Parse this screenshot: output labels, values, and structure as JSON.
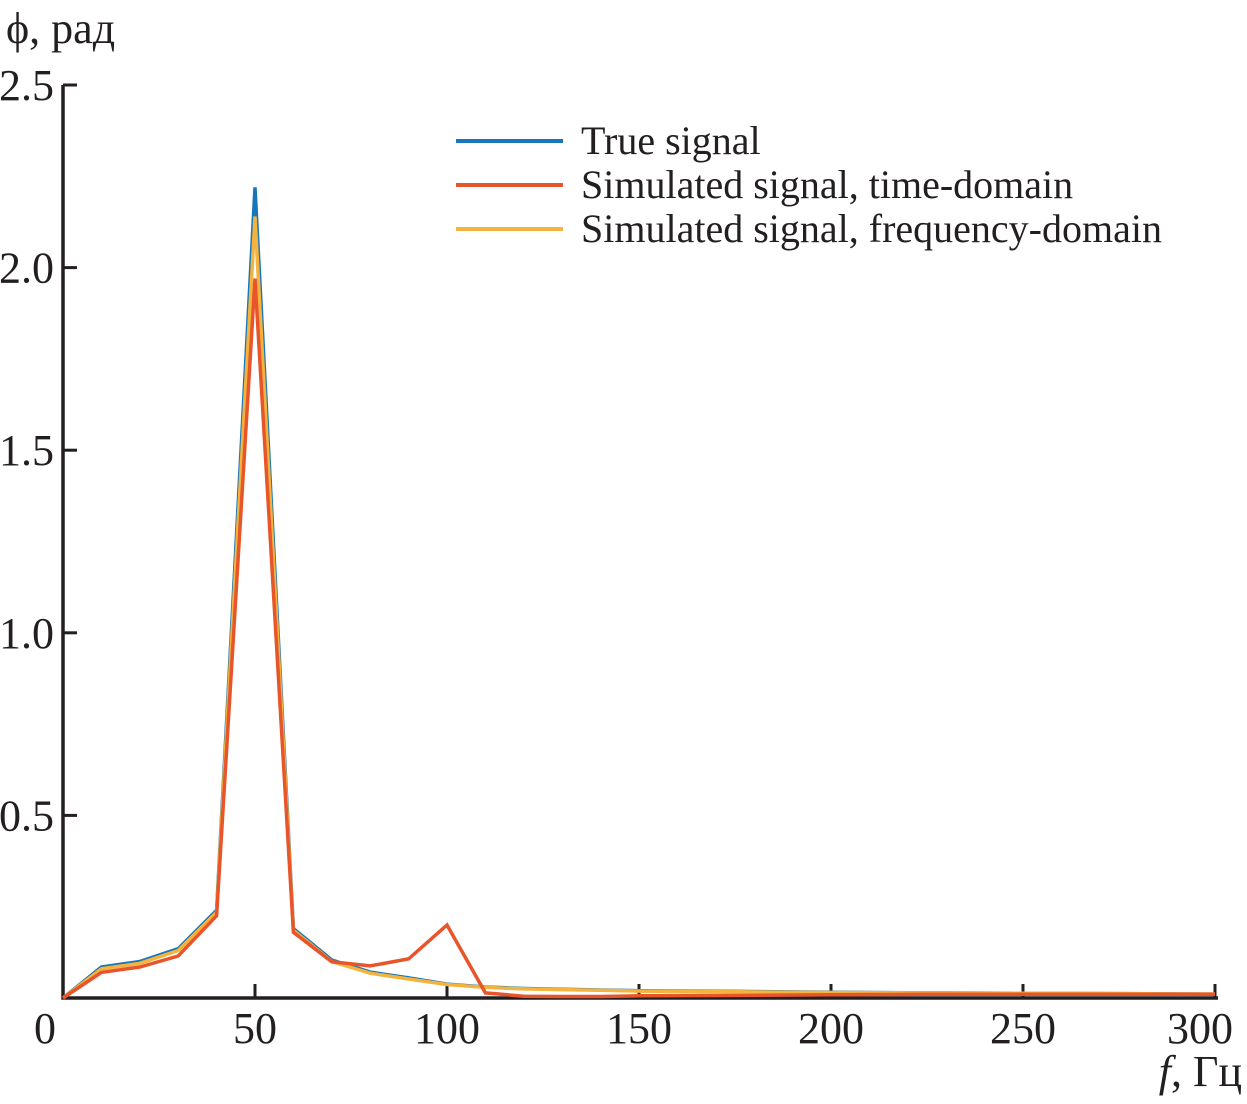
{
  "figure": {
    "background": "#ffffff",
    "text_color": "#231f20",
    "axis_color": "#231f20"
  },
  "chart_data": {
    "type": "line",
    "title": "",
    "ylabel": "ϕ, рад",
    "xlabel_variable": "f",
    "xlabel_unit": ", Гц",
    "xlim": [
      0,
      300
    ],
    "ylim": [
      0,
      2.5
    ],
    "xticks": [
      0,
      50,
      100,
      150,
      200,
      250,
      300
    ],
    "xtick_labels": [
      "0",
      "50",
      "100",
      "150",
      "200",
      "250",
      "300"
    ],
    "yticks": [
      0.5,
      1.0,
      1.5,
      2.0,
      2.5
    ],
    "ytick_labels": [
      "0.5",
      "1.0",
      "1.5",
      "2.0",
      "2.5"
    ],
    "grid": false,
    "legend_position": "upper-center, frameless",
    "x": [
      0,
      10,
      20,
      30,
      40,
      50,
      60,
      70,
      80,
      90,
      100,
      110,
      120,
      130,
      140,
      150,
      175,
      200,
      225,
      250,
      275,
      300
    ],
    "series": [
      {
        "name": "True signal",
        "color": "#1777b8",
        "peak": {
          "x": 50,
          "y": 2.22
        },
        "values": [
          0,
          0.085,
          0.1,
          0.135,
          0.24,
          2.22,
          0.19,
          0.104,
          0.071,
          0.055,
          0.038,
          0.03,
          0.026,
          0.024,
          0.022,
          0.02,
          0.018,
          0.016,
          0.014,
          0.013,
          0.012,
          0.01
        ]
      },
      {
        "name": "Simulated signal, time-domain",
        "color": "#e8552a",
        "peak": {
          "x": 50,
          "y": 1.97
        },
        "secondary_peak": {
          "x": 100,
          "y": 0.2
        },
        "values": [
          0,
          0.07,
          0.085,
          0.115,
          0.225,
          1.97,
          0.18,
          0.099,
          0.088,
          0.107,
          0.2,
          0.014,
          0.005,
          0.004,
          0.004,
          0.006,
          0.007,
          0.009,
          0.01,
          0.01,
          0.01,
          0.01
        ]
      },
      {
        "name": "Simulated signal, frequency-domain",
        "color": "#f3b33e",
        "peak": {
          "x": 50,
          "y": 2.14
        },
        "values": [
          0,
          0.08,
          0.095,
          0.13,
          0.235,
          2.14,
          0.185,
          0.1,
          0.068,
          0.052,
          0.037,
          0.029,
          0.025,
          0.023,
          0.021,
          0.019,
          0.017,
          0.015,
          0.014,
          0.013,
          0.012,
          0.011
        ]
      }
    ],
    "draw_order": [
      0,
      2,
      1
    ]
  },
  "legend": {
    "entries": [
      {
        "label": "True signal"
      },
      {
        "label": "Simulated signal, time-domain"
      },
      {
        "label": "Simulated signal, frequency-domain"
      }
    ]
  }
}
